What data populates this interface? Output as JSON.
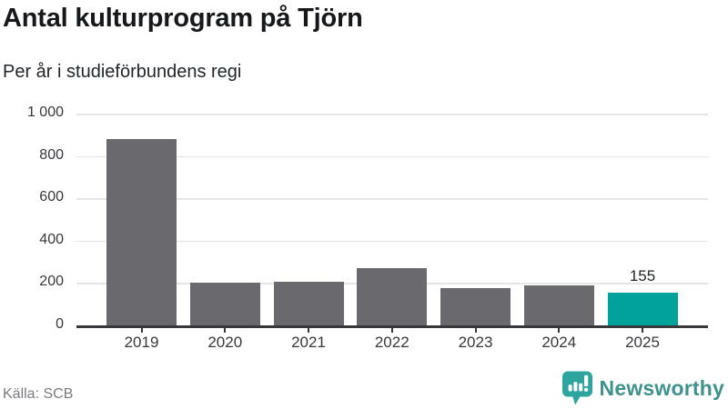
{
  "header": {
    "title": "Antal kulturprogram på Tjörn",
    "subtitle": "Per år i studieförbundens regi"
  },
  "chart_data": {
    "type": "bar",
    "title": "Antal kulturprogram på Tjörn",
    "subtitle": "Per år i studieförbundens regi",
    "categories": [
      "2019",
      "2020",
      "2021",
      "2022",
      "2023",
      "2024",
      "2025"
    ],
    "values": [
      880,
      200,
      205,
      270,
      175,
      190,
      155
    ],
    "highlight_index": 6,
    "annotations": [
      {
        "index": 6,
        "text": "155"
      }
    ],
    "xlabel": "",
    "ylabel": "",
    "ylim": [
      0,
      1000
    ],
    "yticks": [
      0,
      200,
      400,
      600,
      800,
      1000
    ],
    "ytick_labels": [
      "0",
      "200",
      "400",
      "600",
      "800",
      "1 000"
    ],
    "grid": "horizontal",
    "legend": "none",
    "colors": {
      "bar": "#6a6a6e",
      "highlight": "#00a29b"
    }
  },
  "footer": {
    "source": "Källa: SCB",
    "brand": "Newsworthy"
  },
  "colors": {
    "background": "#ffffff",
    "title_text": "#16181b",
    "axis": "#36383c",
    "gridline": "#e5e5e5",
    "source_text": "#7b7b7f",
    "brand_teal": "#3f928c",
    "logo_teal": "#2da49d"
  }
}
